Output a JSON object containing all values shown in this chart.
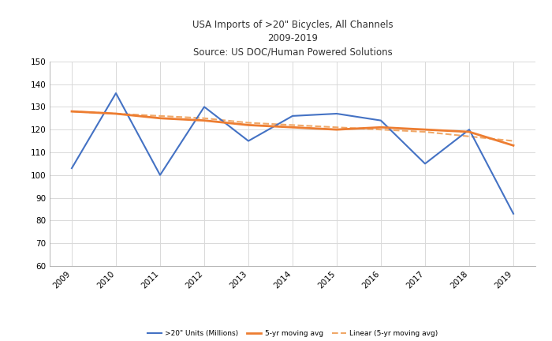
{
  "title_line1": "USA Imports of >20\" Bicycles, All Channels",
  "title_line2": "2009-2019",
  "subtitle": "Source: US DOC/Human Powered Solutions",
  "years": [
    2009,
    2010,
    2011,
    2012,
    2013,
    2014,
    2015,
    2016,
    2017,
    2018,
    2019
  ],
  "year_labels": [
    "2009",
    "2010",
    "2011",
    "2012",
    "2013",
    "2014",
    "2015",
    "2016",
    "2017",
    "2018",
    "2019"
  ],
  "units_millions": [
    103,
    136,
    100,
    130,
    115,
    126,
    127,
    124,
    105,
    120,
    83
  ],
  "moving_avg_5yr": [
    128,
    127,
    125,
    124,
    122,
    121,
    120,
    121,
    120,
    119,
    113
  ],
  "linear_5yr": [
    128,
    127,
    126,
    125,
    123,
    122,
    121,
    120,
    119,
    117,
    115
  ],
  "line_color_blue": "#4472C4",
  "line_color_orange": "#ED7D31",
  "line_color_light": "#F0A868",
  "ylim_min": 60,
  "ylim_max": 150,
  "yticks": [
    60,
    70,
    80,
    90,
    100,
    110,
    120,
    130,
    140,
    150
  ],
  "legend_labels": [
    ">20\" Units (Millions)",
    "5-yr moving avg",
    "Linear (5-yr moving avg)"
  ],
  "bg_color": "#FFFFFF",
  "grid_color": "#D9D9D9"
}
